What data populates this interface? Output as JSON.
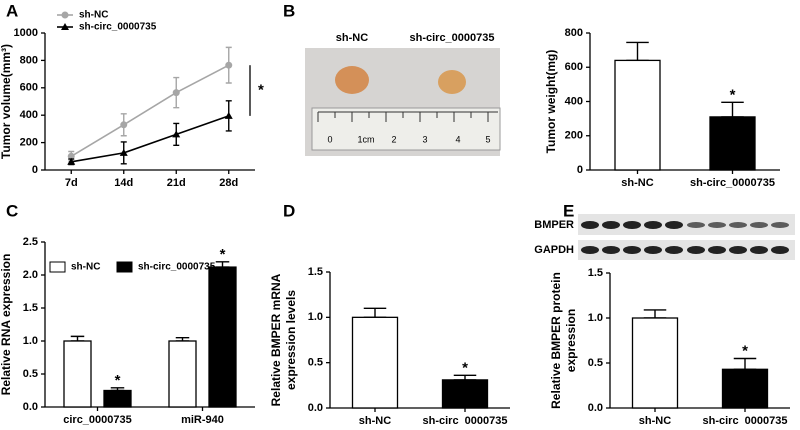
{
  "panels": [
    "A",
    "B",
    "C",
    "D",
    "E"
  ],
  "photo": {
    "labels": [
      "sh-NC",
      "sh-circ_0000735"
    ],
    "ruler": [
      "0",
      "1cm",
      "2",
      "3",
      "4",
      "5"
    ]
  },
  "blot": {
    "labels": [
      "BMPER",
      "GAPDH"
    ]
  },
  "chart_data": [
    {
      "type": "line",
      "categories": [
        "7d",
        "14d",
        "21d",
        "28d"
      ],
      "ylabel": [
        "Tumor volume(mm³)"
      ],
      "ylim": [
        0,
        1000
      ],
      "yticks": [
        0,
        200,
        400,
        600,
        800,
        1000
      ],
      "legend": "upper left",
      "annotation": "*",
      "series": [
        {
          "name": "sh-NC",
          "color": "#a6a6a6",
          "marker": "circle",
          "values": [
            100,
            330,
            565,
            765
          ],
          "errors": [
            35,
            80,
            110,
            130
          ]
        },
        {
          "name": "sh-circ_0000735",
          "color": "#000000",
          "marker": "triangle",
          "values": [
            60,
            125,
            260,
            395
          ],
          "errors": [
            20,
            80,
            80,
            110
          ]
        }
      ]
    },
    {
      "type": "bar",
      "categories": [
        "sh-NC",
        "sh-circ_0000735"
      ],
      "values": [
        640,
        310
      ],
      "errors": [
        105,
        85
      ],
      "colors": [
        "#ffffff",
        "#000000"
      ],
      "value_annotations": [
        null,
        "*"
      ],
      "ylabel": [
        "Tumor weight(mg)"
      ],
      "ylim": [
        0,
        800
      ],
      "yticks": [
        0,
        200,
        400,
        600,
        800
      ]
    },
    {
      "type": "bar",
      "categories": [
        "circ_0000735",
        "miR-940"
      ],
      "ylabel": [
        "Relative RNA expression"
      ],
      "ylim": [
        0,
        2.5
      ],
      "yticks": [
        {
          "value": 0,
          "label": "0.0"
        },
        {
          "value": 0.5,
          "label": "0.5"
        },
        {
          "value": 1,
          "label": "1.0"
        },
        {
          "value": 1.5,
          "label": "1.5"
        },
        {
          "value": 2,
          "label": "2.0"
        },
        {
          "value": 2.5,
          "label": "2.5"
        }
      ],
      "legend": "top",
      "series": [
        {
          "name": "sh-NC",
          "color": "#ffffff",
          "values": [
            1.0,
            1.0
          ],
          "errors": [
            0.07,
            0.05
          ]
        },
        {
          "name": "sh-circ_0000735",
          "color": "#000000",
          "values": [
            0.25,
            2.12
          ],
          "errors": [
            0.04,
            0.08
          ],
          "value_annotations": [
            "*",
            "*"
          ]
        }
      ]
    },
    {
      "type": "bar",
      "categories": [
        "sh-NC",
        "sh-circ_0000735"
      ],
      "values": [
        1.0,
        0.31
      ],
      "errors": [
        0.1,
        0.05
      ],
      "colors": [
        "#ffffff",
        "#000000"
      ],
      "value_annotations": [
        null,
        "*"
      ],
      "ylabel": [
        "Relative BMPER mRNA",
        "expression levels"
      ],
      "ylim": [
        0,
        1.5
      ],
      "yticks": [
        {
          "value": 0,
          "label": "0.0"
        },
        {
          "value": 0.5,
          "label": "0.5"
        },
        {
          "value": 1,
          "label": "1.0"
        },
        {
          "value": 1.5,
          "label": "1.5"
        }
      ]
    },
    {
      "type": "bar",
      "categories": [
        "sh-NC",
        "sh-circ_0000735"
      ],
      "values": [
        1.0,
        0.43
      ],
      "errors": [
        0.09,
        0.12
      ],
      "colors": [
        "#ffffff",
        "#000000"
      ],
      "value_annotations": [
        null,
        "*"
      ],
      "ylabel": [
        "Relative BMPER protein",
        "expression"
      ],
      "ylim": [
        0,
        1.5
      ],
      "yticks": [
        {
          "value": 0,
          "label": "0.0"
        },
        {
          "value": 0.5,
          "label": "0.5"
        },
        {
          "value": 1,
          "label": "1.0"
        },
        {
          "value": 1.5,
          "label": "1.5"
        }
      ]
    }
  ]
}
